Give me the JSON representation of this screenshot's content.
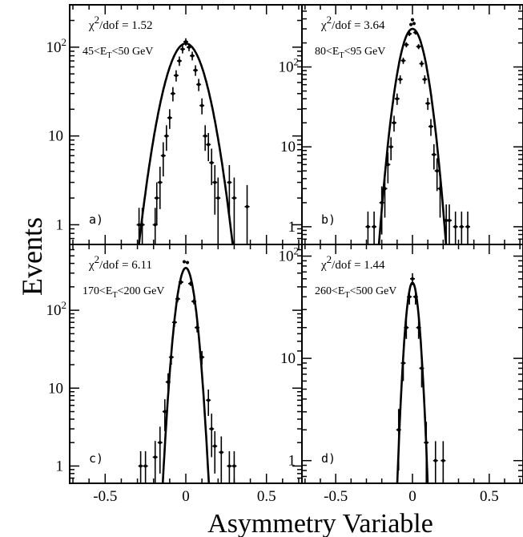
{
  "figure": {
    "ylabel": "Events",
    "xlabel": "Asymmetry Variable"
  },
  "chart_data": [
    {
      "type": "scatter",
      "panel": "a)",
      "chi2_text": "χ2/dof = 1.52",
      "chi2_value": 1.52,
      "et_range_text": "45<ET<50 GeV",
      "xlabel": "Asymmetry Variable",
      "ylabel": "Events",
      "y_scale": "log",
      "xlim": [
        -0.72,
        0.72
      ],
      "ylim": [
        0.6,
        300
      ],
      "y_ticks": [
        {
          "v": 1,
          "base": "1",
          "exp": ""
        },
        {
          "v": 10,
          "base": "10",
          "exp": ""
        },
        {
          "v": 100,
          "base": "10",
          "exp": "2"
        }
      ],
      "x_ticks": [],
      "fit": {
        "type": "gaussian",
        "amplitude": 110,
        "mean": 0.0,
        "sigma": 0.09
      },
      "points": [
        {
          "x": -0.29,
          "y": 1,
          "err": 0.55
        },
        {
          "x": -0.27,
          "y": 1,
          "err": 0.55
        },
        {
          "x": -0.19,
          "y": 1,
          "err": 0.55
        },
        {
          "x": -0.18,
          "y": 2,
          "err": 1.0
        },
        {
          "x": -0.16,
          "y": 3,
          "err": 1.5
        },
        {
          "x": -0.14,
          "y": 6,
          "err": 2.5
        },
        {
          "x": -0.12,
          "y": 10,
          "err": 3.2
        },
        {
          "x": -0.1,
          "y": 16,
          "err": 4
        },
        {
          "x": -0.08,
          "y": 30,
          "err": 5.5
        },
        {
          "x": -0.06,
          "y": 48,
          "err": 7
        },
        {
          "x": -0.04,
          "y": 70,
          "err": 8.5
        },
        {
          "x": -0.02,
          "y": 95,
          "err": 10
        },
        {
          "x": 0.0,
          "y": 115,
          "err": 11
        },
        {
          "x": 0.02,
          "y": 100,
          "err": 10
        },
        {
          "x": 0.04,
          "y": 80,
          "err": 9
        },
        {
          "x": 0.06,
          "y": 55,
          "err": 7.5
        },
        {
          "x": 0.08,
          "y": 38,
          "err": 6
        },
        {
          "x": 0.1,
          "y": 22,
          "err": 4.5
        },
        {
          "x": 0.12,
          "y": 10,
          "err": 3.2
        },
        {
          "x": 0.14,
          "y": 8,
          "err": 2.8
        },
        {
          "x": 0.16,
          "y": 5,
          "err": 2.2
        },
        {
          "x": 0.18,
          "y": 3,
          "err": 1.7
        },
        {
          "x": 0.2,
          "y": 2,
          "err": 1.4
        },
        {
          "x": 0.27,
          "y": 3,
          "err": 1.7
        },
        {
          "x": 0.3,
          "y": 2,
          "err": 1.4
        },
        {
          "x": 0.38,
          "y": 1.6,
          "err": 1.2
        }
      ]
    },
    {
      "type": "scatter",
      "panel": "b)",
      "chi2_text": "χ2/dof = 3.64",
      "chi2_value": 3.64,
      "et_range_text": "80<ET<95 GeV",
      "xlabel": "Asymmetry Variable",
      "ylabel": "Events",
      "y_scale": "log",
      "xlim": [
        -0.72,
        0.72
      ],
      "ylim": [
        0.6,
        600
      ],
      "y_ticks": [
        {
          "v": 1,
          "base": "1",
          "exp": ""
        },
        {
          "v": 10,
          "base": "10",
          "exp": ""
        },
        {
          "v": 100,
          "base": "10",
          "exp": "2"
        }
      ],
      "x_ticks": [],
      "fit": {
        "type": "gaussian",
        "amplitude": 300,
        "mean": 0.0,
        "sigma": 0.062
      },
      "points": [
        {
          "x": -0.29,
          "y": 1,
          "err": 0.55
        },
        {
          "x": -0.25,
          "y": 1,
          "err": 0.55
        },
        {
          "x": -0.2,
          "y": 2,
          "err": 1.2
        },
        {
          "x": -0.18,
          "y": 3,
          "err": 1.7
        },
        {
          "x": -0.16,
          "y": 6,
          "err": 2.5
        },
        {
          "x": -0.14,
          "y": 10,
          "err": 3.2
        },
        {
          "x": -0.12,
          "y": 20,
          "err": 4.5
        },
        {
          "x": -0.1,
          "y": 40,
          "err": 6.5
        },
        {
          "x": -0.08,
          "y": 70,
          "err": 8.5
        },
        {
          "x": -0.06,
          "y": 120,
          "err": 11
        },
        {
          "x": -0.04,
          "y": 190,
          "err": 14
        },
        {
          "x": -0.02,
          "y": 260,
          "err": 16
        },
        {
          "x": 0.0,
          "y": 390,
          "err": 0
        },
        {
          "x": 0.01,
          "y": 350,
          "err": 0
        },
        {
          "x": -0.01,
          "y": 340,
          "err": 0
        },
        {
          "x": 0.02,
          "y": 270,
          "err": 16
        },
        {
          "x": 0.04,
          "y": 180,
          "err": 13
        },
        {
          "x": 0.06,
          "y": 110,
          "err": 10
        },
        {
          "x": 0.08,
          "y": 70,
          "err": 8.5
        },
        {
          "x": 0.1,
          "y": 35,
          "err": 6
        },
        {
          "x": 0.12,
          "y": 18,
          "err": 4.3
        },
        {
          "x": 0.14,
          "y": 8,
          "err": 2.8
        },
        {
          "x": 0.16,
          "y": 5,
          "err": 2.2
        },
        {
          "x": 0.18,
          "y": 3,
          "err": 1.7
        },
        {
          "x": 0.22,
          "y": 1.2,
          "err": 0.7
        },
        {
          "x": 0.24,
          "y": 1.2,
          "err": 0.7
        },
        {
          "x": 0.28,
          "y": 1,
          "err": 0.55
        },
        {
          "x": 0.32,
          "y": 1,
          "err": 0.55
        },
        {
          "x": 0.36,
          "y": 1,
          "err": 0.55
        }
      ]
    },
    {
      "type": "scatter",
      "panel": "c)",
      "chi2_text": "χ2/dof = 6.11",
      "chi2_value": 6.11,
      "et_range_text": "170<ET<200 GeV",
      "xlabel": "Asymmetry Variable",
      "ylabel": "Events",
      "y_scale": "log",
      "xlim": [
        -0.72,
        0.72
      ],
      "ylim": [
        0.6,
        700
      ],
      "y_ticks": [
        {
          "v": 1,
          "base": "1",
          "exp": ""
        },
        {
          "v": 10,
          "base": "10",
          "exp": ""
        },
        {
          "v": 100,
          "base": "10",
          "exp": "2"
        }
      ],
      "x_ticks": [
        {
          "v": -0.5,
          "label": "-0.5"
        },
        {
          "v": 0,
          "label": "0"
        },
        {
          "v": 0.5,
          "label": "0.5"
        }
      ],
      "fit": {
        "type": "gaussian",
        "amplitude": 350,
        "mean": 0.0,
        "sigma": 0.04
      },
      "points": [
        {
          "x": -0.28,
          "y": 1,
          "err": 0.55
        },
        {
          "x": -0.25,
          "y": 1,
          "err": 0.55
        },
        {
          "x": -0.19,
          "y": 1.3,
          "err": 0.8
        },
        {
          "x": -0.16,
          "y": 2,
          "err": 1.2
        },
        {
          "x": -0.13,
          "y": 5,
          "err": 2.2
        },
        {
          "x": -0.11,
          "y": 12,
          "err": 3.5
        },
        {
          "x": -0.09,
          "y": 25,
          "err": 5
        },
        {
          "x": -0.07,
          "y": 70,
          "err": 8.5
        },
        {
          "x": -0.05,
          "y": 140,
          "err": 12
        },
        {
          "x": -0.03,
          "y": 230,
          "err": 15
        },
        {
          "x": -0.01,
          "y": 420,
          "err": 0
        },
        {
          "x": 0.01,
          "y": 410,
          "err": 0
        },
        {
          "x": 0.03,
          "y": 220,
          "err": 15
        },
        {
          "x": 0.05,
          "y": 130,
          "err": 11
        },
        {
          "x": 0.07,
          "y": 60,
          "err": 8
        },
        {
          "x": 0.1,
          "y": 25,
          "err": 5
        },
        {
          "x": 0.14,
          "y": 7,
          "err": 2.6
        },
        {
          "x": 0.16,
          "y": 3,
          "err": 1.7
        },
        {
          "x": 0.18,
          "y": 1.8,
          "err": 1.0
        },
        {
          "x": 0.22,
          "y": 1.5,
          "err": 0.9
        },
        {
          "x": 0.27,
          "y": 1,
          "err": 0.55
        },
        {
          "x": 0.3,
          "y": 1,
          "err": 0.55
        }
      ]
    },
    {
      "type": "scatter",
      "panel": "d)",
      "chi2_text": "χ2/dof = 1.44",
      "chi2_value": 1.44,
      "et_range_text": "260<ET<500 GeV",
      "xlabel": "Asymmetry Variable",
      "ylabel": "Events",
      "y_scale": "log",
      "xlim": [
        -0.72,
        0.72
      ],
      "ylim": [
        0.6,
        130
      ],
      "y_ticks": [
        {
          "v": 1,
          "base": "1",
          "exp": ""
        },
        {
          "v": 10,
          "base": "10",
          "exp": ""
        },
        {
          "v": 100,
          "base": "10",
          "exp": "2"
        }
      ],
      "x_ticks": [
        {
          "v": -0.5,
          "label": "-0.5"
        },
        {
          "v": 0,
          "label": "0"
        },
        {
          "v": 0.5,
          "label": "0.5"
        }
      ],
      "fit": {
        "type": "gaussian",
        "amplitude": 55,
        "mean": 0.0,
        "sigma": 0.033
      },
      "points": [
        {
          "x": -0.09,
          "y": 2,
          "err": 1.2
        },
        {
          "x": -0.06,
          "y": 9,
          "err": 3
        },
        {
          "x": -0.04,
          "y": 20,
          "err": 4.5
        },
        {
          "x": -0.02,
          "y": 40,
          "err": 6.5
        },
        {
          "x": 0.0,
          "y": 60,
          "err": 8
        },
        {
          "x": 0.02,
          "y": 40,
          "err": 6.5
        },
        {
          "x": 0.04,
          "y": 20,
          "err": 4.5
        },
        {
          "x": 0.06,
          "y": 8,
          "err": 2.8
        },
        {
          "x": 0.09,
          "y": 1.5,
          "err": 0.9
        },
        {
          "x": 0.15,
          "y": 1,
          "err": 0.55
        },
        {
          "x": 0.2,
          "y": 1,
          "err": 0.55
        }
      ]
    }
  ]
}
